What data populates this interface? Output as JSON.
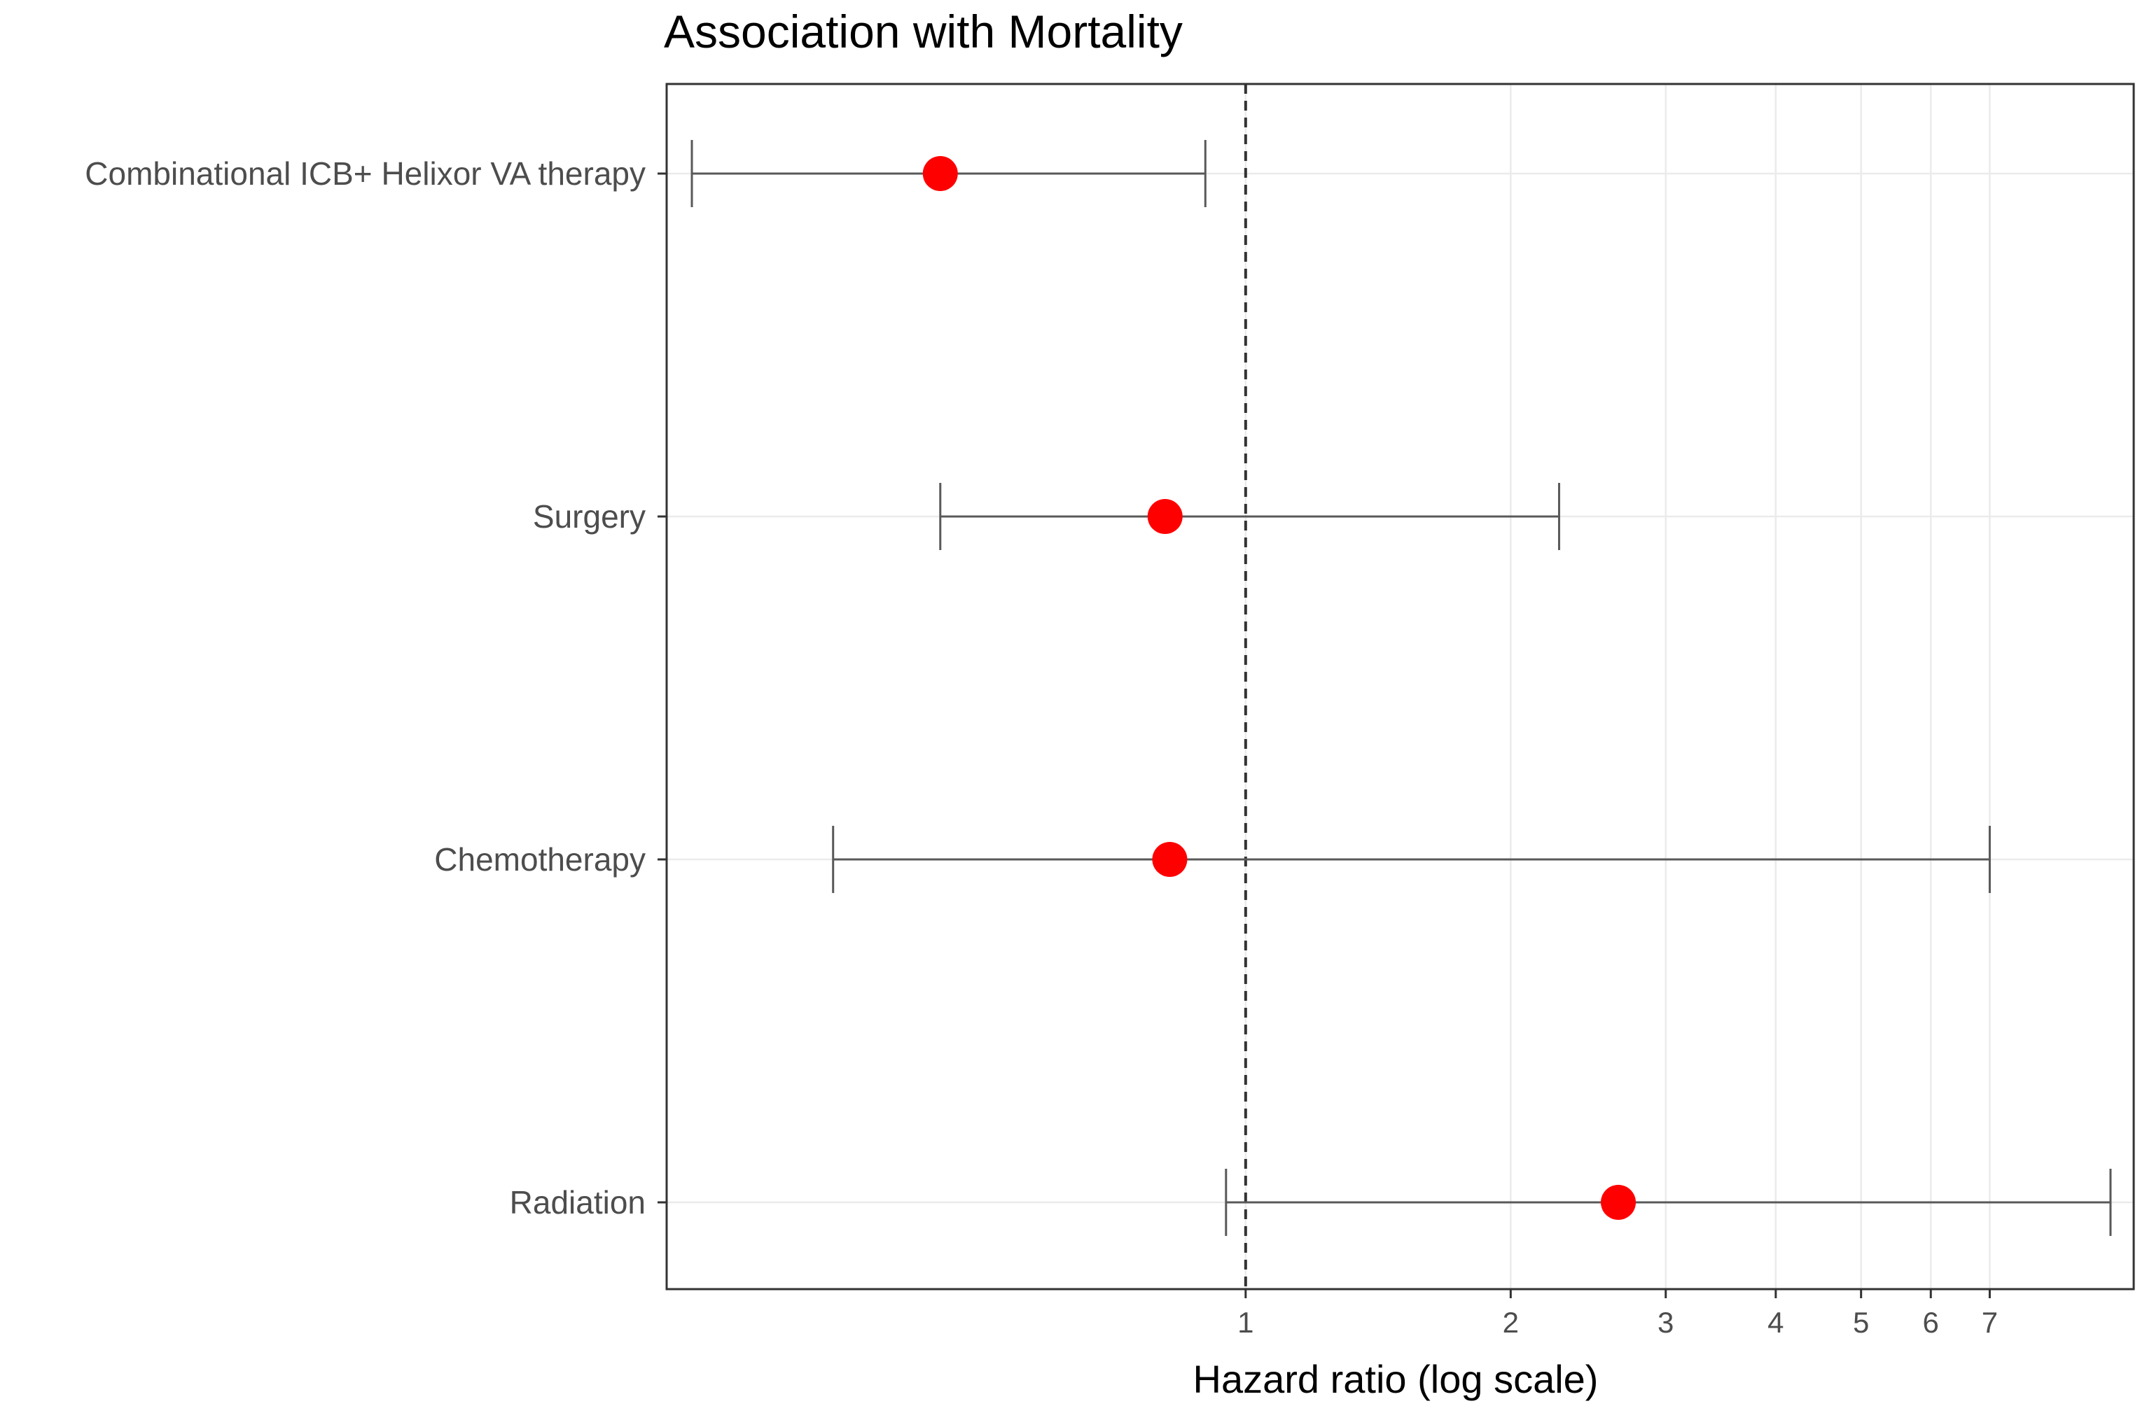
{
  "chart_data": {
    "type": "forest",
    "title": "Association with Mortality",
    "xlabel": "Hazard ratio (log scale)",
    "ylabel": "",
    "xscale": "log",
    "xlim": [
      0.22,
      10.2
    ],
    "reference_line": 1,
    "x_ticks": [
      1,
      2,
      3,
      4,
      5,
      6,
      7
    ],
    "tick_labels": [
      "1",
      "2",
      "3",
      "4",
      "5",
      "6",
      "7"
    ],
    "grid": true,
    "rows": [
      {
        "label": "Combinational ICB+ Helixor VA therapy",
        "hr": 0.45,
        "lower": 0.235,
        "upper": 0.9
      },
      {
        "label": "Surgery",
        "hr": 0.81,
        "lower": 0.45,
        "upper": 2.27
      },
      {
        "label": "Chemotherapy",
        "hr": 0.82,
        "lower": 0.34,
        "upper": 7.0
      },
      {
        "label": "Radiation",
        "hr": 2.65,
        "lower": 0.95,
        "upper": 9.6
      }
    ],
    "colors": {
      "point": "#ff0000",
      "errorbar": "#595959",
      "refline": "#333333",
      "grid": "#ebebeb",
      "panel_border": "#333333"
    }
  }
}
